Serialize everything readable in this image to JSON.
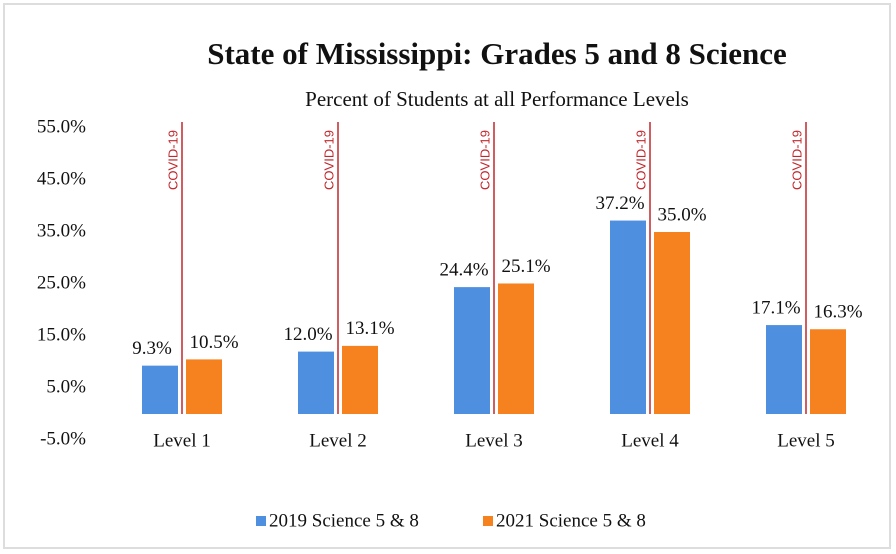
{
  "chart_data": {
    "type": "bar",
    "title": "State of Mississippi:  Grades 5 and 8 Science",
    "subtitle": "Percent of Students at all Performance Levels",
    "annotation": "COVID-19",
    "categories": [
      "Level 1",
      "Level 2",
      "Level 3",
      "Level 4",
      "Level 5"
    ],
    "series": [
      {
        "name": "2019 Science 5 & 8",
        "color": "#4f8fdf",
        "values": [
          9.3,
          12.0,
          24.4,
          37.2,
          17.1
        ],
        "value_labels": [
          "9.3%",
          "12.0%",
          "24.4%",
          "37.2%",
          "17.1%"
        ]
      },
      {
        "name": "2021 Science 5 & 8",
        "color": "#f5821f",
        "values": [
          10.5,
          13.1,
          25.1,
          35.0,
          16.3
        ],
        "value_labels": [
          "10.5%",
          "13.1%",
          "25.1%",
          "35.0%",
          "16.3%"
        ]
      }
    ],
    "ylim": [
      -5,
      55
    ],
    "yticks": [
      {
        "value": -5,
        "label": "-5.0%"
      },
      {
        "value": 5,
        "label": "5.0%"
      },
      {
        "value": 15,
        "label": "15.0%"
      },
      {
        "value": 25,
        "label": "25.0%"
      },
      {
        "value": 35,
        "label": "35.0%"
      },
      {
        "value": 45,
        "label": "45.0%"
      },
      {
        "value": 55,
        "label": "55.0%"
      }
    ],
    "grid": false,
    "legend": "bottom"
  }
}
